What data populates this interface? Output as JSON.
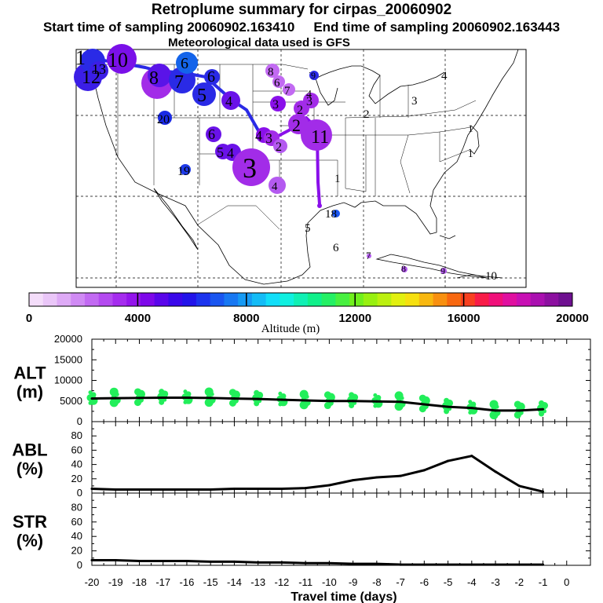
{
  "header": {
    "title": "Retroplume summary for cirpas_20060902",
    "start_label": "Start time of sampling 20060902.163410",
    "end_label": "End time of sampling 20060902.163443",
    "met_label": "Meteorological data used is GFS"
  },
  "map": {
    "region": "continental United States and Gulf of Mexico",
    "plume_points": [
      {
        "day": "10",
        "color": "#7a10e8",
        "size": "large"
      },
      {
        "day": "11",
        "color": "#3b1ee6",
        "size": "large"
      },
      {
        "day": "12",
        "color": "#3b1ee6",
        "size": "large"
      },
      {
        "day": "9",
        "color": "#3b1ee6",
        "size": "large"
      },
      {
        "day": "8",
        "color": "#5a14e8",
        "size": "large"
      },
      {
        "day": "7",
        "color": "#2a2ae6",
        "size": "large"
      },
      {
        "day": "6",
        "color": "#1464ea",
        "size": "medium"
      },
      {
        "day": "5",
        "color": "#2a2ae6",
        "size": "large"
      },
      {
        "day": "4",
        "color": "#6a12e8",
        "size": "medium"
      },
      {
        "day": "3",
        "color": "#a22ce8",
        "size": "large"
      },
      {
        "day": "2",
        "color": "#a22ce8",
        "size": "medium"
      },
      {
        "day": "1",
        "color": "#a22ce8",
        "size": "large"
      }
    ],
    "track_labels": [
      "1",
      "2",
      "3",
      "4",
      "5",
      "6",
      "7",
      "8",
      "9",
      "10",
      "11",
      "12",
      "13",
      "18",
      "19",
      "20"
    ]
  },
  "colorbar": {
    "title": "Altitude (m)",
    "tick_labels": [
      "0",
      "4000",
      "8000",
      "12000",
      "16000",
      "20000"
    ],
    "colors": [
      "#f4ddfa",
      "#eac6f8",
      "#deaaf6",
      "#d08af4",
      "#c26af2",
      "#b44af0",
      "#a52cee",
      "#9414ec",
      "#7e08ea",
      "#5a06ea",
      "#3a08ea",
      "#2214ea",
      "#1c34ee",
      "#1a56f0",
      "#1878f2",
      "#169af4",
      "#14bcf6",
      "#12def8",
      "#10f0e0",
      "#10f0b4",
      "#10f08a",
      "#24f064",
      "#48f040",
      "#70f01c",
      "#98f010",
      "#bcf010",
      "#e2f010",
      "#f6e010",
      "#f8b810",
      "#f89010",
      "#f86810",
      "#f84020",
      "#f81c48",
      "#f0107a",
      "#e010a0",
      "#c810b4",
      "#aa10b0",
      "#8c10a0",
      "#6e1090"
    ]
  },
  "chart_data": [
    {
      "type": "line",
      "panel": "ALT",
      "ylabel_line1": "ALT",
      "ylabel_line2": "(m)",
      "x": [
        -20,
        -19,
        -18,
        -17,
        -16,
        -15,
        -14,
        -13,
        -12,
        -11,
        -10,
        -9,
        -8,
        -7,
        -6,
        -5,
        -4,
        -3,
        -2,
        -1
      ],
      "values": [
        5600,
        5700,
        5750,
        5800,
        5800,
        5750,
        5600,
        5500,
        5300,
        5150,
        5000,
        5000,
        4900,
        4800,
        4200,
        3600,
        3300,
        2700,
        2700,
        3000
      ],
      "scatter_color": "#22ee5a",
      "ylim": [
        0,
        20000
      ],
      "yticks": [
        "0",
        "5000",
        "10000",
        "15000",
        "20000"
      ]
    },
    {
      "type": "line",
      "panel": "ABL",
      "ylabel_line1": "ABL",
      "ylabel_line2": "(%)",
      "x": [
        -20,
        -19,
        -18,
        -17,
        -16,
        -15,
        -14,
        -13,
        -12,
        -11,
        -10,
        -9,
        -8,
        -7,
        -6,
        -5,
        -4,
        -3,
        -2,
        -1
      ],
      "values": [
        6,
        5,
        5,
        5,
        5,
        5,
        6,
        6,
        6,
        7,
        11,
        18,
        22,
        24,
        32,
        45,
        52,
        30,
        10,
        2
      ],
      "ylim": [
        0,
        100
      ],
      "yticks": [
        "0",
        "20",
        "40",
        "60",
        "80"
      ]
    },
    {
      "type": "line",
      "panel": "STR",
      "ylabel_line1": "STR",
      "ylabel_line2": "(%)",
      "x": [
        -20,
        -19,
        -18,
        -17,
        -16,
        -15,
        -14,
        -13,
        -12,
        -11,
        -10,
        -9,
        -8,
        -7,
        -6,
        -5,
        -4,
        -3,
        -2,
        -1
      ],
      "values": [
        7,
        7,
        6,
        6,
        6,
        5,
        5,
        4,
        4,
        3,
        3,
        2,
        2,
        1,
        1,
        1,
        1,
        1,
        1,
        1
      ],
      "ylim": [
        0,
        100
      ],
      "yticks": [
        "0",
        "20",
        "40",
        "60",
        "80"
      ]
    }
  ],
  "xaxis": {
    "label": "Travel time (days)",
    "ticks": [
      "-20",
      "-19",
      "-18",
      "-17",
      "-16",
      "-15",
      "-14",
      "-13",
      "-12",
      "-11",
      "-10",
      "-9",
      "-8",
      "-7",
      "-6",
      "-5",
      "-4",
      "-3",
      "-2",
      "-1",
      "0"
    ]
  }
}
